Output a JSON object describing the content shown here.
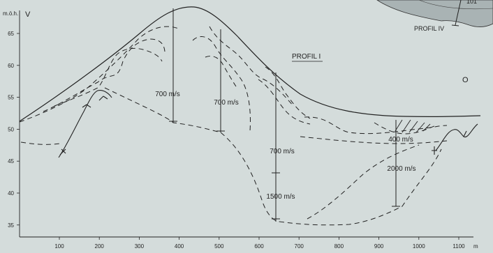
{
  "axis": {
    "y_unit": "m.ö.h.",
    "y_letter": "V",
    "x_unit": "m",
    "y_ticks": [
      "65",
      "60",
      "55",
      "50",
      "45",
      "40",
      "35"
    ],
    "x_ticks": [
      "100",
      "200",
      "300",
      "400",
      "500",
      "600",
      "700",
      "800",
      "900",
      "1000",
      "1100"
    ]
  },
  "labels": {
    "profile_title": "PROFIL I",
    "profile_iv": "PROFIL IV",
    "corner_number": "101",
    "point_o": "O"
  },
  "velocities": {
    "v400": "700 m/s",
    "v500": "700 m/s",
    "v650a": "700 m/s",
    "v650b": "1500 m/s",
    "v950a": "400 m/s",
    "v950b": "2000 m/s"
  },
  "colors": {
    "background": "#d4dcdb",
    "ink": "#222222",
    "inset_fill": "#a9b3b4"
  }
}
